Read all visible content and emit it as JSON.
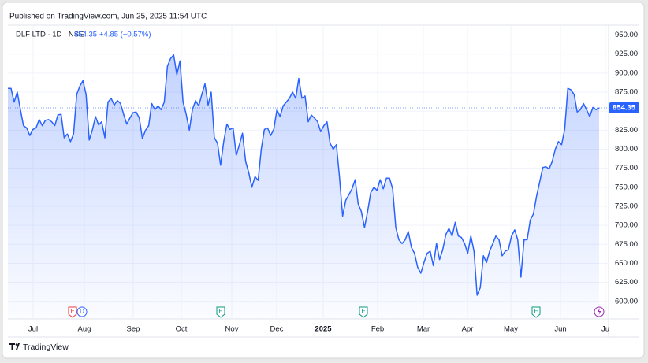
{
  "chart_data": {
    "type": "line",
    "publisher": "Published on TradingView.com, Jun 25, 2025 11:54 UTC",
    "title": "DLF LTD · 1D · NSE",
    "change": "+4.85 (+0.57%)",
    "brand": "TradingView",
    "color": "#2962ff",
    "x_labels": [
      "Jul",
      "Aug",
      "Sep",
      "Oct",
      "Nov",
      "Dec",
      "2025",
      "Feb",
      "Mar",
      "Apr",
      "May",
      "Jun",
      "Ju"
    ],
    "events": [
      "E",
      "D",
      "E",
      "E",
      "E"
    ],
    "values": [
      880,
      880,
      862,
      875,
      852,
      831,
      828,
      818,
      826,
      828,
      839,
      831,
      838,
      839,
      836,
      831,
      845,
      846,
      815,
      820,
      810,
      820,
      872,
      883,
      890,
      872,
      812,
      825,
      843,
      832,
      836,
      815,
      862,
      867,
      858,
      864,
      860,
      846,
      833,
      841,
      848,
      849,
      841,
      814,
      825,
      831,
      860,
      852,
      857,
      852,
      862,
      909,
      919,
      924,
      898,
      916,
      862,
      846,
      825,
      852,
      864,
      857,
      872,
      886,
      858,
      875,
      815,
      808,
      779,
      810,
      833,
      826,
      828,
      792,
      806,
      821,
      784,
      769,
      750,
      764,
      759,
      800,
      826,
      828,
      818,
      826,
      852,
      843,
      857,
      862,
      867,
      875,
      867,
      893,
      867,
      870,
      836,
      845,
      841,
      836,
      823,
      831,
      836,
      808,
      800,
      806,
      764,
      712,
      733,
      740,
      748,
      760,
      728,
      718,
      697,
      718,
      743,
      750,
      746,
      760,
      748,
      762,
      762,
      748,
      697,
      681,
      676,
      681,
      692,
      671,
      663,
      645,
      637,
      651,
      663,
      666,
      647,
      676,
      655,
      668,
      688,
      696,
      686,
      704,
      686,
      684,
      676,
      663,
      686,
      666,
      608,
      618,
      660,
      651,
      666,
      676,
      686,
      681,
      660,
      666,
      668,
      686,
      694,
      681,
      632,
      681,
      681,
      707,
      715,
      738,
      757,
      776,
      777,
      774,
      784,
      800,
      810,
      806,
      826,
      880,
      878,
      872,
      849,
      852,
      860,
      852,
      843,
      855,
      852,
      854.35
    ],
    "ylim": [
      577,
      963
    ],
    "yticks": [
      {
        "value": 600,
        "label": "600.00"
      },
      {
        "value": 625,
        "label": "625.00"
      },
      {
        "value": 650,
        "label": "650.00"
      },
      {
        "value": 675,
        "label": "675.00"
      },
      {
        "value": 700,
        "label": "700.00"
      },
      {
        "value": 725,
        "label": "725.00"
      },
      {
        "value": 750,
        "label": "750.00"
      },
      {
        "value": 775,
        "label": "775.00"
      },
      {
        "value": 800,
        "label": "800.00"
      },
      {
        "value": 825,
        "label": "825.00"
      },
      {
        "value": 850,
        "label": "850.00"
      },
      {
        "value": 875,
        "label": "875.00"
      },
      {
        "value": 900,
        "label": "900.00"
      },
      {
        "value": 925,
        "label": "925.00"
      },
      {
        "value": 950,
        "label": "950.00"
      }
    ],
    "grid": true
  }
}
